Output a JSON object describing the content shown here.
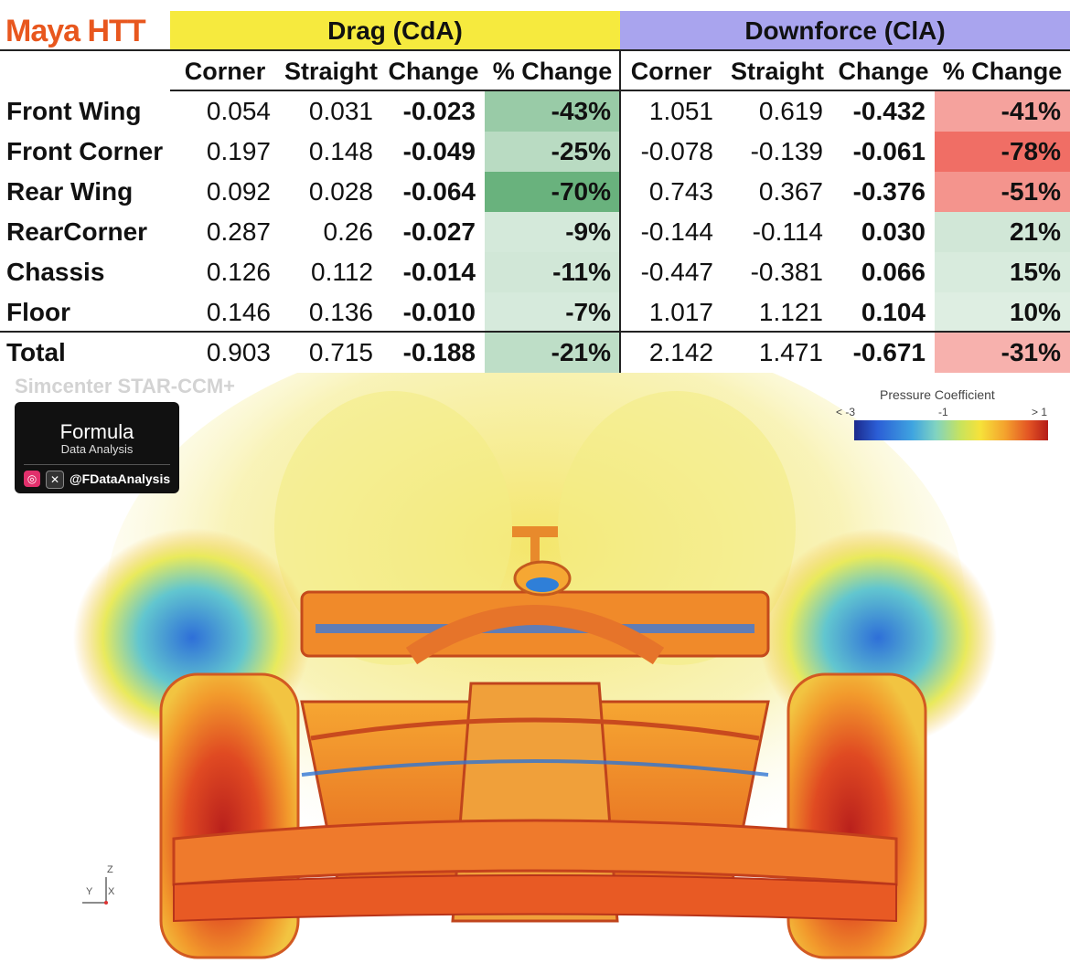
{
  "brand": "Maya HTT",
  "groups": {
    "drag": "Drag (CdA)",
    "downforce": "Downforce (ClA)"
  },
  "columns": [
    "Corner",
    "Straight",
    "Change",
    "% Change",
    "Corner",
    "Straight",
    "Change",
    "% Change"
  ],
  "rows": [
    {
      "label": "Front Wing",
      "drag": [
        "0.054",
        "0.031",
        "-0.023",
        "-43%"
      ],
      "down": [
        "1.051",
        "0.619",
        "-0.432",
        "-41%"
      ]
    },
    {
      "label": "Front Corner",
      "drag": [
        "0.197",
        "0.148",
        "-0.049",
        "-25%"
      ],
      "down": [
        "-0.078",
        "-0.139",
        "-0.061",
        "-78%"
      ]
    },
    {
      "label": "Rear Wing",
      "drag": [
        "0.092",
        "0.028",
        "-0.064",
        "-70%"
      ],
      "down": [
        "0.743",
        "0.367",
        "-0.376",
        "-51%"
      ]
    },
    {
      "label": "RearCorner",
      "drag": [
        "0.287",
        "0.26",
        "-0.027",
        "-9%"
      ],
      "down": [
        "-0.144",
        "-0.114",
        "0.030",
        "21%"
      ]
    },
    {
      "label": "Chassis",
      "drag": [
        "0.126",
        "0.112",
        "-0.014",
        "-11%"
      ],
      "down": [
        "-0.447",
        "-0.381",
        "0.066",
        "15%"
      ]
    },
    {
      "label": "Floor",
      "drag": [
        "0.146",
        "0.136",
        "-0.010",
        "-7%"
      ],
      "down": [
        "1.017",
        "1.121",
        "0.104",
        "10%"
      ]
    }
  ],
  "total": {
    "label": "Total",
    "drag": [
      "0.903",
      "0.715",
      "-0.188",
      "-21%"
    ],
    "down": [
      "2.142",
      "1.471",
      "-0.671",
      "-31%"
    ]
  },
  "chart_data": {
    "type": "table",
    "column_groups": [
      "Drag (CdA)",
      "Downforce (ClA)"
    ],
    "columns": [
      "Corner",
      "Straight",
      "Change",
      "% Change"
    ],
    "rows": [
      "Front Wing",
      "Front Corner",
      "Rear Wing",
      "RearCorner",
      "Chassis",
      "Floor",
      "Total"
    ],
    "drag_pct_change": [
      -43,
      -25,
      -70,
      -9,
      -11,
      -7,
      -21
    ],
    "downforce_pct_change": [
      -41,
      -78,
      -51,
      21,
      15,
      10,
      -31
    ]
  },
  "colors": {
    "brand": "#e8571e",
    "drag_header": "#f6ea3e",
    "downforce_header": "#a9a4ee",
    "positive": "#63b17a",
    "negative": "#ee6a60"
  },
  "cfd": {
    "software_label": "Simcenter STAR-CCM+",
    "logo_title": "Formula",
    "logo_subtitle": "Data Analysis",
    "handle": "@FDataAnalysis",
    "legend_title": "Pressure Coefficient",
    "legend_min": "< -3",
    "legend_mid": "-1",
    "legend_max": "> 1",
    "axis_labels": [
      "Z",
      "Y",
      "X"
    ],
    "icons": [
      "instagram-icon",
      "x-icon"
    ]
  }
}
